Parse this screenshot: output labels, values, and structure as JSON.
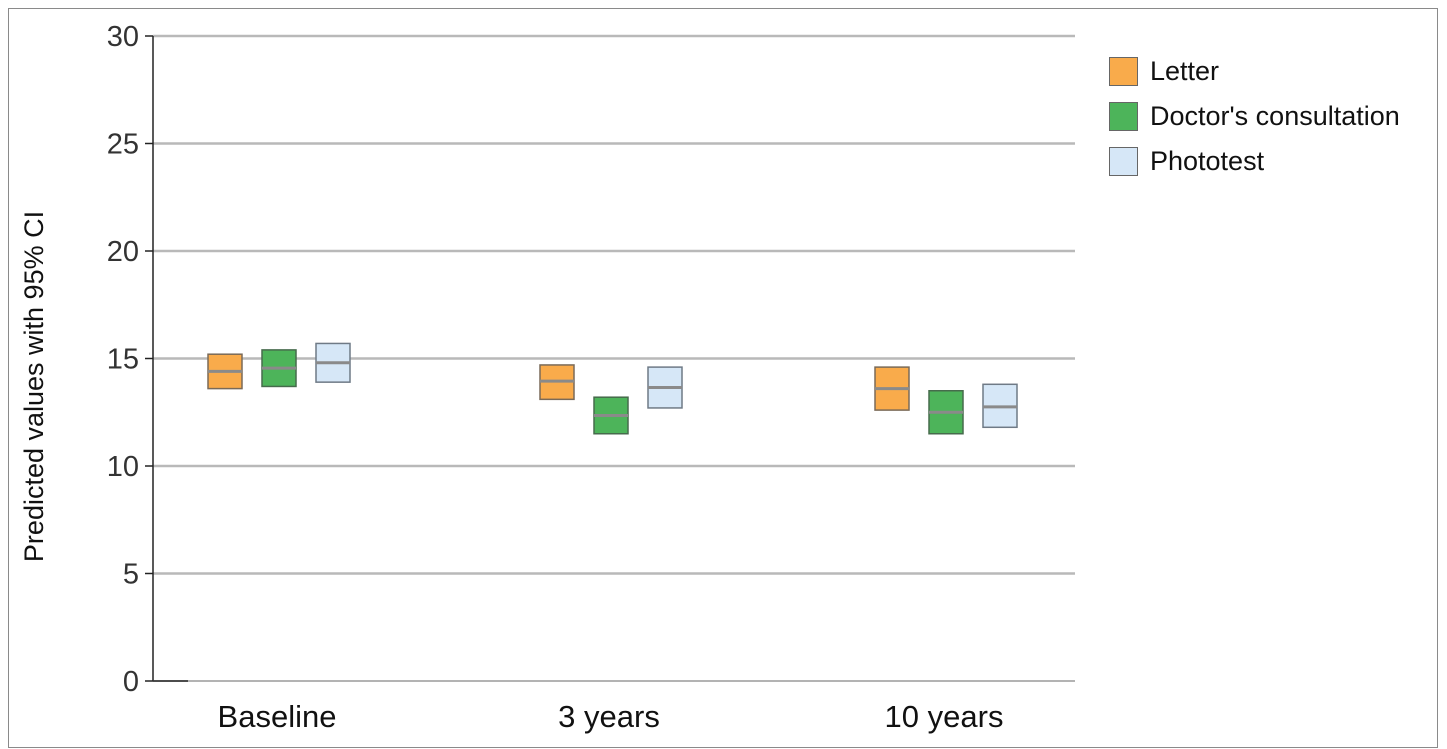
{
  "chart_data": {
    "type": "box",
    "categories": [
      "Baseline",
      "3 years",
      "10 years"
    ],
    "ylabel": "Predicted values with 95% CI",
    "xlabel": "",
    "ylim": [
      0,
      30
    ],
    "yticks": [
      0,
      5,
      10,
      15,
      20,
      25,
      30
    ],
    "grid": true,
    "legend_position": "top-right",
    "series": [
      {
        "name": "Letter",
        "color": "#f9ab4b",
        "estimate": [
          14.4,
          13.95,
          13.6
        ],
        "ci_low": [
          13.6,
          13.1,
          12.6
        ],
        "ci_high": [
          15.2,
          14.7,
          14.6
        ]
      },
      {
        "name": "Doctor's consultation",
        "color": "#4db45a",
        "estimate": [
          14.55,
          12.35,
          12.5
        ],
        "ci_low": [
          13.7,
          11.5,
          11.5
        ],
        "ci_high": [
          15.4,
          13.2,
          13.5
        ]
      },
      {
        "name": "Phototest",
        "color": "#d6e7f7",
        "estimate": [
          14.8,
          13.65,
          12.75
        ],
        "ci_low": [
          13.9,
          12.7,
          11.8
        ],
        "ci_high": [
          15.7,
          14.6,
          13.8
        ]
      }
    ]
  }
}
